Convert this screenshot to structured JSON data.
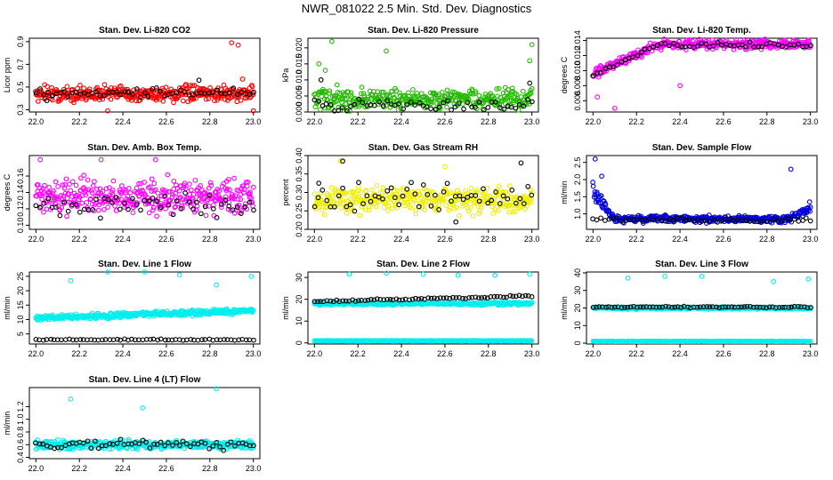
{
  "page": {
    "title": "NWR_081022  2.5 Min. Std. Dev. Diagnostics"
  },
  "chart_data": [
    {
      "id": "p1",
      "type": "scatter",
      "title": "Stan. Dev. Li-820 CO2",
      "xlabel": "",
      "ylabel": "Licor ppm",
      "xlim": [
        21.97,
        23.03
      ],
      "ylim": [
        0.28,
        0.93
      ],
      "xticks": [
        "22.0",
        "22.2",
        "22.4",
        "22.6",
        "22.8",
        "23.0"
      ],
      "yticks": [
        "0.3",
        "0.5",
        "0.7",
        "0.9"
      ],
      "color": "#ff0000",
      "secondary_color": "#000000",
      "series": [
        {
          "name": "primary",
          "color": "#ff0000",
          "base": 0.44,
          "spread": 0.06,
          "count": 380,
          "outliers": [
            [
              22.9,
              0.89
            ],
            [
              22.93,
              0.87
            ],
            [
              23.0,
              0.29
            ],
            [
              22.33,
              0.29
            ],
            [
              22.04,
              0.52
            ],
            [
              22.95,
              0.57
            ]
          ]
        },
        {
          "name": "secondary",
          "color": "#000000",
          "base": 0.45,
          "spread": 0.04,
          "count": 55,
          "outliers": [
            [
              22.75,
              0.56
            ],
            [
              22.05,
              0.38
            ]
          ]
        }
      ]
    },
    {
      "id": "p2",
      "type": "scatter",
      "title": "Stan. Dev. Li-820 Pressure",
      "xlabel": "",
      "ylabel": "kPa",
      "xlim": [
        21.97,
        23.03
      ],
      "ylim": [
        0.0,
        0.023
      ],
      "xticks": [
        "22.0",
        "22.2",
        "22.4",
        "22.6",
        "22.8",
        "23.0"
      ],
      "yticks": [
        "0.000",
        "0.005",
        "0.010",
        "0.015",
        "0.020"
      ],
      "color": "#00cc00",
      "secondary_color": "#000000",
      "series": [
        {
          "name": "primary",
          "color": "#22bb00",
          "base": 0.004,
          "spread": 0.003,
          "count": 380,
          "outliers": [
            [
              22.08,
              0.022
            ],
            [
              22.33,
              0.019
            ],
            [
              23.0,
              0.021
            ],
            [
              22.02,
              0.015
            ],
            [
              22.99,
              0.016
            ],
            [
              22.05,
              0.013
            ]
          ]
        },
        {
          "name": "secondary",
          "color": "#000000",
          "base": 0.002,
          "spread": 0.002,
          "count": 55,
          "outliers": [
            [
              22.03,
              0.01
            ],
            [
              22.99,
              0.009
            ]
          ]
        }
      ]
    },
    {
      "id": "p3",
      "type": "scatter",
      "title": "Stan. Dev. Li-820 Temp.",
      "xlabel": "",
      "ylabel": "degrees C",
      "xlim": [
        21.97,
        23.03
      ],
      "ylim": [
        0.0045,
        0.0143
      ],
      "xticks": [
        "22.0",
        "22.2",
        "22.4",
        "22.6",
        "22.8",
        "23.0"
      ],
      "yticks": [
        "0.006",
        "0.008",
        "0.010",
        "0.012",
        "0.014"
      ],
      "color": "#ff00ff",
      "secondary_color": "#000000",
      "series": [
        {
          "name": "primary",
          "color": "#ff00ff",
          "base": 0.0135,
          "spread": 0.0006,
          "count": 380,
          "rising": true,
          "outliers": [
            [
              22.1,
              0.005
            ],
            [
              22.4,
              0.008
            ],
            [
              22.02,
              0.0065
            ]
          ]
        },
        {
          "name": "secondary",
          "color": "#000000",
          "base": 0.0134,
          "spread": 0.0003,
          "count": 55,
          "rising": true,
          "outliers": []
        }
      ]
    },
    {
      "id": "p4",
      "type": "scatter",
      "title": "Stan. Dev. Amb. Box Temp.",
      "xlabel": "",
      "ylabel": "degrees C",
      "xlim": [
        21.97,
        23.03
      ],
      "ylim": [
        0.095,
        0.185
      ],
      "xticks": [
        "22.0",
        "22.2",
        "22.4",
        "22.6",
        "22.8",
        "23.0"
      ],
      "yticks": [
        "0.10",
        "0.12",
        "0.14",
        "0.16"
      ],
      "color": "#ff00ff",
      "secondary_color": "#000000",
      "series": [
        {
          "name": "primary",
          "color": "#ff00ff",
          "base": 0.135,
          "spread": 0.018,
          "count": 380,
          "outliers": [
            [
              22.02,
              0.18
            ],
            [
              22.3,
              0.18
            ],
            [
              22.55,
              0.18
            ]
          ]
        },
        {
          "name": "secondary",
          "color": "#000000",
          "base": 0.125,
          "spread": 0.012,
          "count": 55,
          "outliers": []
        }
      ]
    },
    {
      "id": "p5",
      "type": "scatter",
      "title": "Stan. Dev. Gas Stream RH",
      "xlabel": "",
      "ylabel": "percent",
      "xlim": [
        21.97,
        23.03
      ],
      "ylim": [
        0.2,
        0.4
      ],
      "xticks": [
        "22.0",
        "22.2",
        "22.4",
        "22.6",
        "22.8",
        "23.0"
      ],
      "yticks": [
        "0.20",
        "0.25",
        "0.30",
        "0.35",
        "0.40"
      ],
      "color": "#ffff00",
      "secondary_color": "#000000",
      "series": [
        {
          "name": "primary",
          "color": "#eeee00",
          "base": 0.28,
          "spread": 0.03,
          "count": 380,
          "outliers": [
            [
              22.12,
              0.385
            ],
            [
              22.6,
              0.37
            ]
          ]
        },
        {
          "name": "secondary",
          "color": "#000000",
          "base": 0.285,
          "spread": 0.035,
          "count": 55,
          "outliers": [
            [
              22.13,
              0.385
            ],
            [
              22.95,
              0.38
            ],
            [
              22.02,
              0.325
            ],
            [
              22.65,
              0.22
            ]
          ]
        }
      ]
    },
    {
      "id": "p6",
      "type": "scatter",
      "title": "Stan. Dev. Sample Flow",
      "xlabel": "",
      "ylabel": "ml/min",
      "xlim": [
        21.97,
        23.03
      ],
      "ylim": [
        0.55,
        2.7
      ],
      "xticks": [
        "22.0",
        "22.2",
        "22.4",
        "22.6",
        "22.8",
        "23.0"
      ],
      "yticks": [
        "1.0",
        "1.5",
        "2.0",
        "2.5"
      ],
      "color": "#0000ff",
      "secondary_color": "#000000",
      "series": [
        {
          "name": "primary",
          "color": "#0000dd",
          "base": 0.85,
          "spread": 0.09,
          "count": 420,
          "decayStart": 1.8,
          "riseEnd": 1.3,
          "outliers": [
            [
              22.01,
              2.6
            ],
            [
              22.91,
              2.3
            ],
            [
              22.04,
              2.1
            ]
          ]
        },
        {
          "name": "secondary",
          "color": "#000000",
          "base": 0.82,
          "spread": 0.05,
          "count": 55,
          "outliers": []
        }
      ]
    },
    {
      "id": "p7",
      "type": "scatter",
      "title": "Stan. Dev. Line 1 Flow",
      "xlabel": "",
      "ylabel": "ml/min",
      "xlim": [
        21.97,
        23.03
      ],
      "ylim": [
        1.5,
        26.5
      ],
      "xticks": [
        "22.0",
        "22.2",
        "22.4",
        "22.6",
        "22.8",
        "23.0"
      ],
      "yticks": [
        "5",
        "10",
        "15",
        "20",
        "25"
      ],
      "color": "#00ffff",
      "secondary_color": "#000000",
      "series": [
        {
          "name": "primary",
          "color": "#00eeee",
          "base": 10.5,
          "spread": 0.8,
          "count": 420,
          "slope": 2.5,
          "outliers": [
            [
              22.16,
              23.5
            ],
            [
              22.33,
              26.5
            ],
            [
              22.5,
              26.5
            ],
            [
              22.66,
              25.5
            ],
            [
              22.83,
              22
            ],
            [
              22.99,
              25
            ]
          ]
        },
        {
          "name": "secondary",
          "color": "#000000",
          "base": 3.0,
          "spread": 0.2,
          "count": 60,
          "outliers": []
        }
      ]
    },
    {
      "id": "p8",
      "type": "scatter",
      "title": "Stan. Dev. Line 2 Flow",
      "xlabel": "",
      "ylabel": "ml/min",
      "xlim": [
        21.97,
        23.03
      ],
      "ylim": [
        -0.5,
        32.5
      ],
      "xticks": [
        "22.0",
        "22.2",
        "22.4",
        "22.6",
        "22.8",
        "23.0"
      ],
      "yticks": [
        "0",
        "10",
        "20",
        "30"
      ],
      "color": "#00ffff",
      "secondary_color": "#000000",
      "series": [
        {
          "name": "primary",
          "color": "#00eeee",
          "base": 18.0,
          "spread": 0.6,
          "count": 380,
          "outliers": [
            [
              22.16,
              31.5
            ],
            [
              22.33,
              32
            ],
            [
              22.5,
              31.5
            ],
            [
              22.66,
              31
            ],
            [
              22.83,
              31
            ],
            [
              22.99,
              31.5
            ]
          ]
        },
        {
          "name": "floor",
          "color": "#00eeee",
          "base": 1.0,
          "spread": 0.1,
          "count": 260,
          "outliers": []
        },
        {
          "name": "secondary",
          "color": "#000000",
          "base": 19.0,
          "spread": 0.4,
          "count": 70,
          "slope": 2.5,
          "outliers": []
        }
      ]
    },
    {
      "id": "p9",
      "type": "scatter",
      "title": "Stan. Dev. Line 3 Flow",
      "xlabel": "",
      "ylabel": "ml/min",
      "xlim": [
        21.97,
        23.03
      ],
      "ylim": [
        -0.5,
        40.5
      ],
      "xticks": [
        "22.0",
        "22.2",
        "22.4",
        "22.6",
        "22.8",
        "23.0"
      ],
      "yticks": [
        "0",
        "10",
        "20",
        "30",
        "40"
      ],
      "color": "#00ffff",
      "secondary_color": "#000000",
      "series": [
        {
          "name": "primary",
          "color": "#00eeee",
          "base": 20.0,
          "spread": 0.6,
          "count": 360,
          "outliers": [
            [
              22.16,
              37
            ],
            [
              22.33,
              38
            ],
            [
              22.5,
              38
            ],
            [
              22.83,
              35
            ],
            [
              22.99,
              36.5
            ]
          ]
        },
        {
          "name": "floor",
          "color": "#00eeee",
          "base": 1.0,
          "spread": 0.1,
          "count": 260,
          "outliers": []
        },
        {
          "name": "secondary",
          "color": "#000000",
          "base": 20.5,
          "spread": 0.4,
          "count": 70,
          "outliers": []
        }
      ]
    },
    {
      "id": "p10",
      "type": "scatter",
      "title": "Stan. Dev. Line 4 (LT) Flow",
      "xlabel": "",
      "ylabel": "ml/min",
      "xlim": [
        21.97,
        23.03
      ],
      "ylim": [
        0.38,
        1.5
      ],
      "xticks": [
        "22.0",
        "22.2",
        "22.4",
        "22.6",
        "22.8",
        "23.0"
      ],
      "yticks": [
        "0.4",
        "0.6",
        "0.8",
        "1.0",
        "1.2"
      ],
      "color": "#00ffff",
      "secondary_color": "#000000",
      "series": [
        {
          "name": "primary",
          "color": "#00eeee",
          "base": 0.6,
          "spread": 0.06,
          "count": 420,
          "outliers": [
            [
              22.16,
              1.32
            ],
            [
              22.49,
              1.18
            ],
            [
              22.83,
              1.48
            ]
          ]
        },
        {
          "name": "secondary",
          "color": "#000000",
          "base": 0.6,
          "spread": 0.06,
          "count": 60,
          "outliers": []
        }
      ]
    }
  ]
}
